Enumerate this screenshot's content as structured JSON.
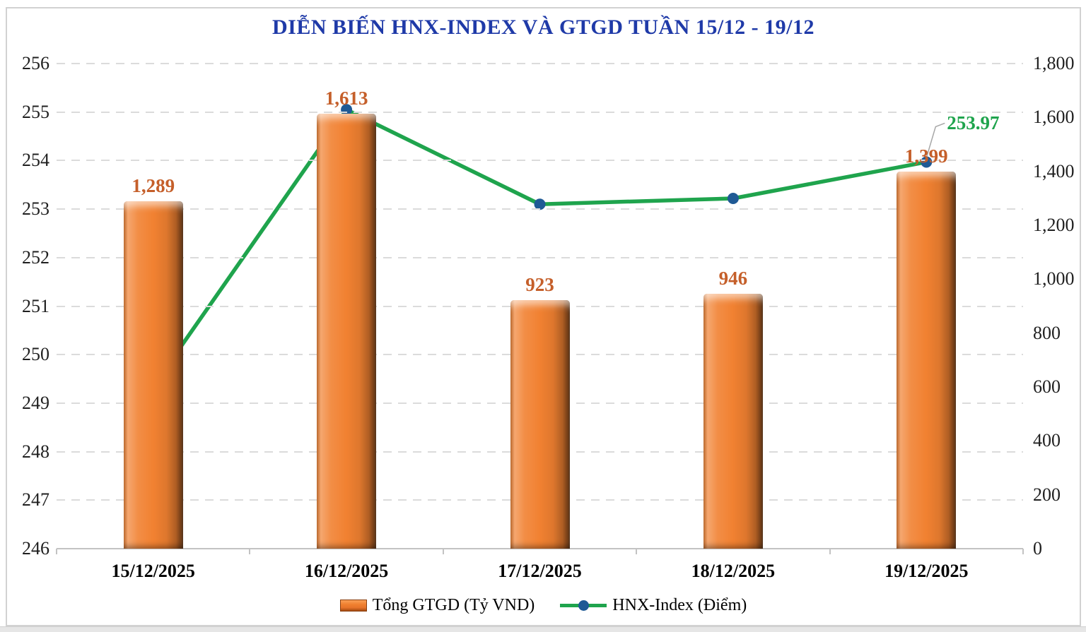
{
  "chart_data": {
    "type": "combo",
    "title": "DIỄN BIẾN HNX-INDEX VÀ GTGD TUẦN 15/12 - 19/12",
    "title_color": "#1f3aa8",
    "categories": [
      "15/12/2025",
      "16/12/2025",
      "17/12/2025",
      "18/12/2025",
      "19/12/2025"
    ],
    "series": [
      {
        "name": "Tổng GTGD (Tỷ VND)",
        "type": "bar",
        "axis": "right",
        "values": [
          1289,
          1613,
          923,
          946,
          1399
        ],
        "value_labels": [
          "1,289",
          "1,613",
          "923",
          "946",
          "1,399"
        ],
        "color": "#f18131",
        "label_color": "#c55f2a"
      },
      {
        "name": "HNX-Index (Điểm)",
        "type": "line",
        "axis": "left",
        "values": [
          249.35,
          255.05,
          253.1,
          253.22,
          253.97
        ],
        "color": "#1fa44d",
        "marker_color": "#1f5a95"
      }
    ],
    "left_axis": {
      "min": 246,
      "max": 256,
      "step": 1,
      "ticks": [
        "256",
        "255",
        "254",
        "253",
        "252",
        "251",
        "250",
        "249",
        "248",
        "247",
        "246"
      ]
    },
    "right_axis": {
      "min": 0,
      "max": 1800,
      "step": 200,
      "ticks": [
        "1,800",
        "1,600",
        "1,400",
        "1,200",
        "1,000",
        "800",
        "600",
        "400",
        "200",
        "0"
      ]
    },
    "annotation": {
      "text": "253.97",
      "color": "#1fa44d",
      "point_index": 4,
      "leader_color": "#a6a6a6"
    },
    "legend": {
      "position": "bottom",
      "items": [
        {
          "label": "Tổng GTGD (Tỷ VND)",
          "swatch": "orange-bar"
        },
        {
          "label": "HNX-Index (Điểm)",
          "swatch": "green-line-blue-dot"
        }
      ]
    },
    "grid": {
      "horizontal": "dashed",
      "color": "#dbdbdb"
    }
  },
  "page": {
    "background": "#ffffff",
    "bottom_strip_color": "#e6e6e6",
    "frame_border_color": "#d2d2d2"
  }
}
